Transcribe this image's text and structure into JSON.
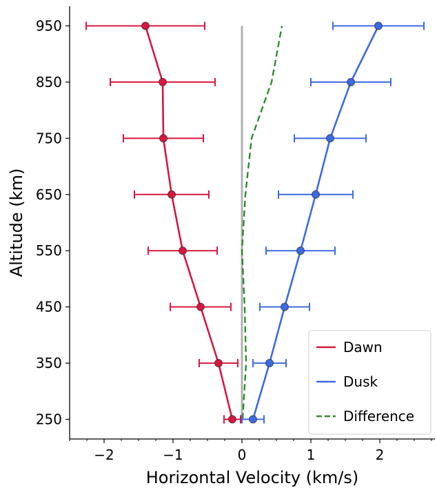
{
  "chart_data": {
    "type": "line",
    "title": "",
    "xlabel": "Horizontal Velocity (km/s)",
    "ylabel": "Altitude (km)",
    "xlim": [
      -2.5,
      2.8
    ],
    "ylim": [
      215,
      985
    ],
    "x_ticks": [
      -2,
      -1,
      0,
      1,
      2
    ],
    "x_tick_labels": [
      "−2",
      "−1",
      "0",
      "1",
      "2"
    ],
    "y_ticks": [
      250,
      350,
      450,
      550,
      650,
      750,
      850,
      950
    ],
    "y_tick_labels": [
      "250",
      "350",
      "450",
      "550",
      "650",
      "750",
      "850",
      "950"
    ],
    "x_minor_tick_step": 0.25,
    "grid": false,
    "legend_position": "lower right",
    "reference_line": {
      "x": 0,
      "y_range": [
        250,
        950
      ],
      "color": "#b0b0b0"
    },
    "series": [
      {
        "name": "Dawn",
        "color": "#d6173f",
        "style": "solid-marker-errorbar",
        "x": [
          -0.14,
          -0.34,
          -0.6,
          -0.86,
          -1.02,
          -1.14,
          -1.15,
          -1.4
        ],
        "y": [
          250,
          350,
          450,
          550,
          650,
          750,
          850,
          950
        ],
        "xerr": [
          0.12,
          0.28,
          0.44,
          0.5,
          0.54,
          0.58,
          0.76,
          0.86
        ]
      },
      {
        "name": "Dusk",
        "color": "#3d6ae0",
        "style": "solid-marker-errorbar",
        "x": [
          0.16,
          0.4,
          0.62,
          0.85,
          1.07,
          1.28,
          1.58,
          1.98
        ],
        "y": [
          250,
          350,
          450,
          550,
          650,
          750,
          850,
          950
        ],
        "xerr": [
          0.16,
          0.24,
          0.36,
          0.5,
          0.54,
          0.52,
          0.58,
          0.66
        ]
      },
      {
        "name": "Difference",
        "color": "#2a8c2a",
        "style": "dashed",
        "x": [
          0.01,
          0.06,
          0.04,
          0.0,
          0.05,
          0.14,
          0.43,
          0.58
        ],
        "y": [
          250,
          350,
          450,
          550,
          650,
          750,
          850,
          950
        ]
      }
    ]
  }
}
